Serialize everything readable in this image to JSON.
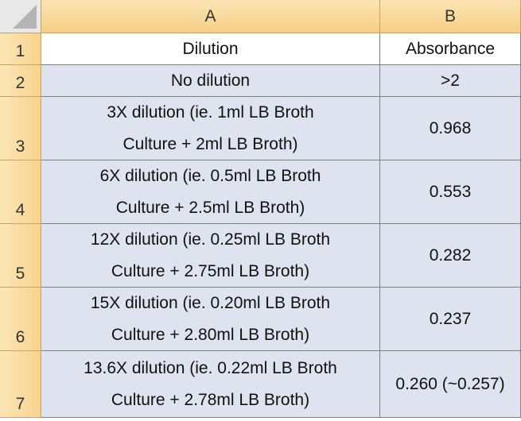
{
  "column_headers": [
    "A",
    "B"
  ],
  "rows": [
    {
      "number": "1",
      "cells": [
        [
          "Dilution"
        ],
        "Absorbance"
      ]
    },
    {
      "number": "2",
      "cells": [
        [
          "No dilution"
        ],
        ">2"
      ]
    },
    {
      "number": "3",
      "cells": [
        [
          "3X dilution (ie. 1ml LB Broth",
          "Culture + 2ml LB Broth)"
        ],
        "0.968"
      ]
    },
    {
      "number": "4",
      "cells": [
        [
          "6X dilution (ie. 0.5ml LB Broth",
          "Culture + 2.5ml LB Broth)"
        ],
        "0.553"
      ]
    },
    {
      "number": "5",
      "cells": [
        [
          "12X dilution (ie. 0.25ml LB Broth",
          "Culture + 2.75ml LB Broth)"
        ],
        "0.282"
      ]
    },
    {
      "number": "6",
      "cells": [
        [
          "15X dilution (ie. 0.20ml LB Broth",
          "Culture + 2.80ml LB Broth)"
        ],
        "0.237"
      ]
    },
    {
      "number": "7",
      "cells": [
        [
          "13.6X dilution (ie. 0.22ml LB Broth",
          "Culture + 2.78ml LB Broth)"
        ],
        "0.260 (~0.257)"
      ]
    }
  ]
}
